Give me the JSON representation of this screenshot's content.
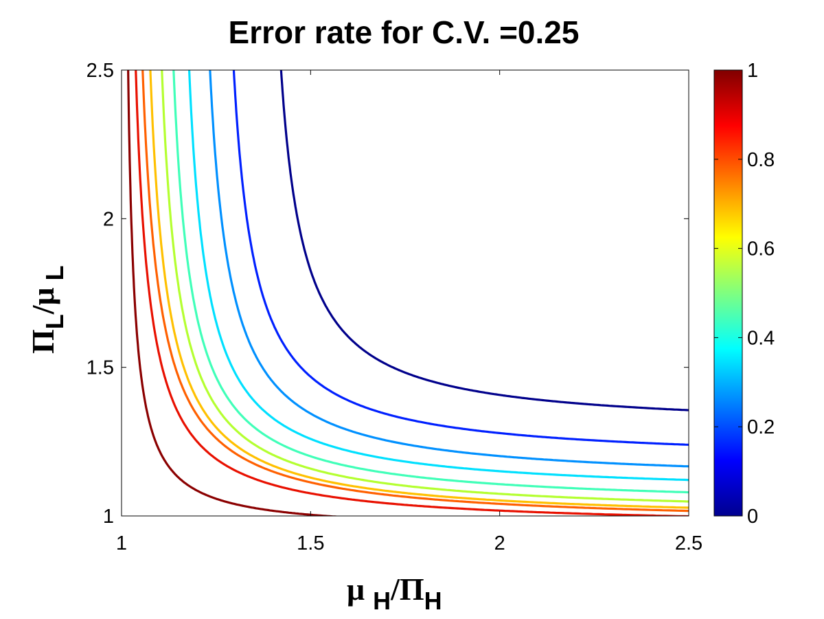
{
  "chart_data": {
    "type": "contour",
    "title": "Error rate for C.V. =0.25",
    "xlabel": {
      "main": "μ",
      "sub1": "H",
      "sep": "/Π",
      "sub2": "H"
    },
    "ylabel": {
      "main": "Π",
      "sub1": "L",
      "sep": "/μ",
      "sub2": "L"
    },
    "xlim": [
      1,
      2.5
    ],
    "ylim": [
      1,
      2.5
    ],
    "x_ticks": [
      {
        "value": 1,
        "label": "1"
      },
      {
        "value": 1.5,
        "label": "1.5"
      },
      {
        "value": 2,
        "label": "2"
      },
      {
        "value": 2.5,
        "label": "2.5"
      }
    ],
    "y_ticks": [
      {
        "value": 1,
        "label": "1"
      },
      {
        "value": 1.5,
        "label": "1.5"
      },
      {
        "value": 2,
        "label": "2"
      },
      {
        "value": 2.5,
        "label": "2.5"
      }
    ],
    "colorbar": {
      "colormap": "jet",
      "range": [
        0,
        1
      ],
      "ticks": [
        {
          "value": 0,
          "label": "0"
        },
        {
          "value": 0.2,
          "label": "0.2"
        },
        {
          "value": 0.4,
          "label": "0.4"
        },
        {
          "value": 0.6,
          "label": "0.6"
        },
        {
          "value": 0.8,
          "label": "0.8"
        },
        {
          "value": 1,
          "label": "1"
        }
      ]
    },
    "contours": [
      {
        "level": 0.9,
        "color": "#8b0000",
        "x_asymptote": 1.0,
        "y_asymptote": 0.95,
        "k": 0.027
      },
      {
        "level": 0.8,
        "color": "#e81000",
        "x_asymptote": 1.0,
        "y_asymptote": 0.96,
        "k": 0.058
      },
      {
        "level": 0.7,
        "color": "#ff6000",
        "x_asymptote": 1.01,
        "y_asymptote": 0.97,
        "k": 0.07
      },
      {
        "level": 0.6,
        "color": "#ffc000",
        "x_asymptote": 1.03,
        "y_asymptote": 0.98,
        "k": 0.07
      },
      {
        "level": 0.5,
        "color": "#b4ff30",
        "x_asymptote": 1.06,
        "y_asymptote": 1.0,
        "k": 0.07
      },
      {
        "level": 0.4,
        "color": "#40ffb8",
        "x_asymptote": 1.09,
        "y_asymptote": 1.03,
        "k": 0.07
      },
      {
        "level": 0.3,
        "color": "#00e0ff",
        "x_asymptote": 1.13,
        "y_asymptote": 1.07,
        "k": 0.07
      },
      {
        "level": 0.2,
        "color": "#0090ff",
        "x_asymptote": 1.18,
        "y_asymptote": 1.11,
        "k": 0.075
      },
      {
        "level": 0.1,
        "color": "#0020ff",
        "x_asymptote": 1.24,
        "y_asymptote": 1.18,
        "k": 0.075
      },
      {
        "level": 0.0,
        "color": "#00008b",
        "x_asymptote": 1.36,
        "y_asymptote": 1.29,
        "k": 0.075
      }
    ]
  }
}
